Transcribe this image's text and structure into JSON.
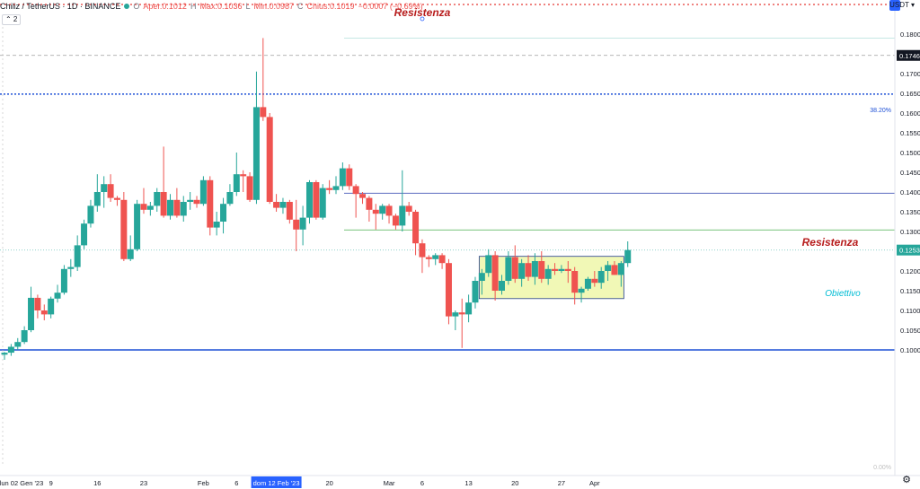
{
  "header": {
    "symbol": "Chiliz / TetherUS · 1D · BINANCE",
    "open_label": "O",
    "open": "Aper.0.1012",
    "high_label": "H",
    "high": "Max.0.1036",
    "low_label": "L",
    "low": "Min.0.0987",
    "close_label": "C",
    "close": "Chius.0.1019",
    "change": "−0.0007 (−0.69%)",
    "collapse": "⌃ 2",
    "currency": "USDT ▾"
  },
  "annotations": {
    "top_resistance": "Resistenza",
    "mid_resistance": "Resistenza",
    "target": "Obiettivo",
    "fib_382": "38.20%",
    "fib_0": "0.00%"
  },
  "price_labels": {
    "last": "0.1253",
    "marker": "0.1746"
  },
  "colors": {
    "up": "#26a69a",
    "down": "#ef5350",
    "resistance_text": "#b71c1c",
    "target_text": "#00bcd4",
    "fib_line": "#1e50d6",
    "box_fill": "#f1f8b6",
    "box_border": "#1e3a8a",
    "resistance_line": "#5c6bc0",
    "target_line": "#4caf50",
    "dotted_top": "#e53935"
  },
  "chart_data": {
    "type": "candlestick",
    "symbol": "Chiliz / TetherUS",
    "interval": "1D",
    "exchange": "BINANCE",
    "y_axis": {
      "range": [
        0.0985,
        0.1845
      ],
      "ticks": [
        "0.1800",
        "0.1750",
        "0.1700",
        "0.1650",
        "0.1600",
        "0.1550",
        "0.1500",
        "0.1450",
        "0.1400",
        "0.1350",
        "0.1300",
        "0.1250",
        "0.1200",
        "0.1150",
        "0.1100",
        "0.1050",
        "0.1000"
      ]
    },
    "x_axis": {
      "labels": [
        {
          "text": "lun 02 Gen '23",
          "index": 0
        },
        {
          "text": "9",
          "index": 7
        },
        {
          "text": "16",
          "index": 14
        },
        {
          "text": "23",
          "index": 21
        },
        {
          "text": "Feb",
          "index": 30
        },
        {
          "text": "6",
          "index": 35
        },
        {
          "text": "dom 12 Feb '23",
          "index": 41
        },
        {
          "text": "20",
          "index": 49
        },
        {
          "text": "Mar",
          "index": 58
        },
        {
          "text": "6",
          "index": 63
        },
        {
          "text": "13",
          "index": 70
        },
        {
          "text": "20",
          "index": 77
        },
        {
          "text": "27",
          "index": 84
        },
        {
          "text": "Apr",
          "index": 89
        }
      ],
      "highlight_label": "dom 12 Feb '23"
    },
    "candles": [
      {
        "o": 0.0988,
        "h": 0.0995,
        "l": 0.0975,
        "c": 0.0993
      },
      {
        "o": 0.0993,
        "h": 0.1015,
        "l": 0.0985,
        "c": 0.1008
      },
      {
        "o": 0.1008,
        "h": 0.103,
        "l": 0.1,
        "c": 0.102
      },
      {
        "o": 0.102,
        "h": 0.106,
        "l": 0.1015,
        "c": 0.105
      },
      {
        "o": 0.105,
        "h": 0.116,
        "l": 0.1045,
        "c": 0.1132
      },
      {
        "o": 0.1132,
        "h": 0.114,
        "l": 0.108,
        "c": 0.11
      },
      {
        "o": 0.11,
        "h": 0.1115,
        "l": 0.1075,
        "c": 0.109
      },
      {
        "o": 0.109,
        "h": 0.1135,
        "l": 0.108,
        "c": 0.113
      },
      {
        "o": 0.113,
        "h": 0.1165,
        "l": 0.112,
        "c": 0.1145
      },
      {
        "o": 0.1145,
        "h": 0.1215,
        "l": 0.114,
        "c": 0.1205
      },
      {
        "o": 0.1205,
        "h": 0.123,
        "l": 0.1185,
        "c": 0.121
      },
      {
        "o": 0.121,
        "h": 0.129,
        "l": 0.12,
        "c": 0.1265
      },
      {
        "o": 0.1265,
        "h": 0.133,
        "l": 0.1255,
        "c": 0.132
      },
      {
        "o": 0.132,
        "h": 0.138,
        "l": 0.131,
        "c": 0.1365
      },
      {
        "o": 0.1365,
        "h": 0.1445,
        "l": 0.135,
        "c": 0.14
      },
      {
        "o": 0.14,
        "h": 0.144,
        "l": 0.136,
        "c": 0.142
      },
      {
        "o": 0.142,
        "h": 0.1445,
        "l": 0.1375,
        "c": 0.1385
      },
      {
        "o": 0.1385,
        "h": 0.139,
        "l": 0.1365,
        "c": 0.138
      },
      {
        "o": 0.138,
        "h": 0.14,
        "l": 0.1225,
        "c": 0.123
      },
      {
        "o": 0.123,
        "h": 0.129,
        "l": 0.1225,
        "c": 0.1255
      },
      {
        "o": 0.1255,
        "h": 0.138,
        "l": 0.125,
        "c": 0.137
      },
      {
        "o": 0.137,
        "h": 0.141,
        "l": 0.1345,
        "c": 0.1355
      },
      {
        "o": 0.1355,
        "h": 0.1375,
        "l": 0.134,
        "c": 0.1365
      },
      {
        "o": 0.1365,
        "h": 0.141,
        "l": 0.135,
        "c": 0.14
      },
      {
        "o": 0.14,
        "h": 0.1515,
        "l": 0.1335,
        "c": 0.134
      },
      {
        "o": 0.134,
        "h": 0.1395,
        "l": 0.133,
        "c": 0.138
      },
      {
        "o": 0.138,
        "h": 0.141,
        "l": 0.1335,
        "c": 0.134
      },
      {
        "o": 0.134,
        "h": 0.139,
        "l": 0.1325,
        "c": 0.1375
      },
      {
        "o": 0.1375,
        "h": 0.14,
        "l": 0.1355,
        "c": 0.138
      },
      {
        "o": 0.138,
        "h": 0.139,
        "l": 0.136,
        "c": 0.137
      },
      {
        "o": 0.137,
        "h": 0.144,
        "l": 0.1365,
        "c": 0.143
      },
      {
        "o": 0.143,
        "h": 0.144,
        "l": 0.129,
        "c": 0.131
      },
      {
        "o": 0.131,
        "h": 0.135,
        "l": 0.129,
        "c": 0.1325
      },
      {
        "o": 0.1325,
        "h": 0.1385,
        "l": 0.1295,
        "c": 0.137
      },
      {
        "o": 0.137,
        "h": 0.142,
        "l": 0.1365,
        "c": 0.14
      },
      {
        "o": 0.14,
        "h": 0.15,
        "l": 0.139,
        "c": 0.1445
      },
      {
        "o": 0.1445,
        "h": 0.1455,
        "l": 0.14,
        "c": 0.144
      },
      {
        "o": 0.144,
        "h": 0.145,
        "l": 0.1375,
        "c": 0.138
      },
      {
        "o": 0.138,
        "h": 0.1705,
        "l": 0.137,
        "c": 0.1615
      },
      {
        "o": 0.1615,
        "h": 0.179,
        "l": 0.158,
        "c": 0.159
      },
      {
        "o": 0.159,
        "h": 0.16,
        "l": 0.137,
        "c": 0.1375
      },
      {
        "o": 0.1375,
        "h": 0.1395,
        "l": 0.135,
        "c": 0.136
      },
      {
        "o": 0.136,
        "h": 0.1385,
        "l": 0.1345,
        "c": 0.1375
      },
      {
        "o": 0.1375,
        "h": 0.138,
        "l": 0.132,
        "c": 0.133
      },
      {
        "o": 0.133,
        "h": 0.138,
        "l": 0.125,
        "c": 0.1305
      },
      {
        "o": 0.1305,
        "h": 0.1365,
        "l": 0.1265,
        "c": 0.1335
      },
      {
        "o": 0.1335,
        "h": 0.143,
        "l": 0.132,
        "c": 0.1425
      },
      {
        "o": 0.1425,
        "h": 0.143,
        "l": 0.133,
        "c": 0.1335
      },
      {
        "o": 0.1335,
        "h": 0.142,
        "l": 0.133,
        "c": 0.141
      },
      {
        "o": 0.141,
        "h": 0.143,
        "l": 0.1395,
        "c": 0.1405
      },
      {
        "o": 0.1405,
        "h": 0.144,
        "l": 0.1395,
        "c": 0.1415
      },
      {
        "o": 0.1415,
        "h": 0.1475,
        "l": 0.1405,
        "c": 0.146
      },
      {
        "o": 0.146,
        "h": 0.147,
        "l": 0.1405,
        "c": 0.1415
      },
      {
        "o": 0.1415,
        "h": 0.142,
        "l": 0.1335,
        "c": 0.1395
      },
      {
        "o": 0.1395,
        "h": 0.14,
        "l": 0.137,
        "c": 0.1385
      },
      {
        "o": 0.1385,
        "h": 0.139,
        "l": 0.1325,
        "c": 0.1355
      },
      {
        "o": 0.1355,
        "h": 0.137,
        "l": 0.1305,
        "c": 0.1345
      },
      {
        "o": 0.1345,
        "h": 0.137,
        "l": 0.133,
        "c": 0.1365
      },
      {
        "o": 0.1365,
        "h": 0.137,
        "l": 0.132,
        "c": 0.134
      },
      {
        "o": 0.134,
        "h": 0.1345,
        "l": 0.1305,
        "c": 0.1315
      },
      {
        "o": 0.1315,
        "h": 0.1455,
        "l": 0.13,
        "c": 0.1365
      },
      {
        "o": 0.1365,
        "h": 0.1375,
        "l": 0.134,
        "c": 0.135
      },
      {
        "o": 0.135,
        "h": 0.1355,
        "l": 0.124,
        "c": 0.127
      },
      {
        "o": 0.127,
        "h": 0.128,
        "l": 0.1195,
        "c": 0.1235
      },
      {
        "o": 0.1235,
        "h": 0.124,
        "l": 0.121,
        "c": 0.123
      },
      {
        "o": 0.123,
        "h": 0.1245,
        "l": 0.1215,
        "c": 0.124
      },
      {
        "o": 0.124,
        "h": 0.1245,
        "l": 0.1205,
        "c": 0.122
      },
      {
        "o": 0.122,
        "h": 0.123,
        "l": 0.1065,
        "c": 0.1085
      },
      {
        "o": 0.1085,
        "h": 0.11,
        "l": 0.105,
        "c": 0.1095
      },
      {
        "o": 0.1095,
        "h": 0.113,
        "l": 0.1005,
        "c": 0.109
      },
      {
        "o": 0.109,
        "h": 0.114,
        "l": 0.107,
        "c": 0.112
      },
      {
        "o": 0.112,
        "h": 0.1185,
        "l": 0.1105,
        "c": 0.1175
      },
      {
        "o": 0.1175,
        "h": 0.1205,
        "l": 0.114,
        "c": 0.1195
      },
      {
        "o": 0.1195,
        "h": 0.1255,
        "l": 0.1185,
        "c": 0.124
      },
      {
        "o": 0.124,
        "h": 0.125,
        "l": 0.1125,
        "c": 0.115
      },
      {
        "o": 0.115,
        "h": 0.119,
        "l": 0.114,
        "c": 0.1175
      },
      {
        "o": 0.1175,
        "h": 0.125,
        "l": 0.1165,
        "c": 0.1235
      },
      {
        "o": 0.1235,
        "h": 0.1265,
        "l": 0.117,
        "c": 0.118
      },
      {
        "o": 0.118,
        "h": 0.123,
        "l": 0.116,
        "c": 0.122
      },
      {
        "o": 0.122,
        "h": 0.124,
        "l": 0.1175,
        "c": 0.1185
      },
      {
        "o": 0.1185,
        "h": 0.1245,
        "l": 0.1165,
        "c": 0.1225
      },
      {
        "o": 0.1225,
        "h": 0.125,
        "l": 0.117,
        "c": 0.118
      },
      {
        "o": 0.118,
        "h": 0.1215,
        "l": 0.1165,
        "c": 0.1205
      },
      {
        "o": 0.1205,
        "h": 0.122,
        "l": 0.119,
        "c": 0.12
      },
      {
        "o": 0.12,
        "h": 0.1215,
        "l": 0.1195,
        "c": 0.1205
      },
      {
        "o": 0.1205,
        "h": 0.1225,
        "l": 0.117,
        "c": 0.12
      },
      {
        "o": 0.12,
        "h": 0.121,
        "l": 0.1115,
        "c": 0.1145
      },
      {
        "o": 0.1145,
        "h": 0.116,
        "l": 0.112,
        "c": 0.1155
      },
      {
        "o": 0.1155,
        "h": 0.1185,
        "l": 0.115,
        "c": 0.118
      },
      {
        "o": 0.118,
        "h": 0.12,
        "l": 0.116,
        "c": 0.117
      },
      {
        "o": 0.117,
        "h": 0.121,
        "l": 0.1155,
        "c": 0.12
      },
      {
        "o": 0.12,
        "h": 0.1225,
        "l": 0.1175,
        "c": 0.1215
      },
      {
        "o": 0.1215,
        "h": 0.1225,
        "l": 0.119,
        "c": 0.119
      },
      {
        "o": 0.119,
        "h": 0.1225,
        "l": 0.116,
        "c": 0.122
      },
      {
        "o": 0.122,
        "h": 0.1275,
        "l": 0.121,
        "c": 0.1253
      }
    ],
    "levels": [
      {
        "name": "resistance-top",
        "price": 0.1848,
        "style": "dotted"
      },
      {
        "name": "fib-38.20",
        "price": 0.1648,
        "style": "dotted"
      },
      {
        "name": "resistance-mid",
        "price": 0.1397,
        "style": "solid"
      },
      {
        "name": "target",
        "price": 0.1304,
        "style": "solid"
      },
      {
        "name": "fib-0.00",
        "price": 0.1,
        "style": "solid"
      },
      {
        "name": "marker",
        "price": 0.1746,
        "style": "dashed"
      },
      {
        "name": "last-close",
        "price": 0.1253,
        "style": "dotted"
      }
    ],
    "range_box": {
      "start_index": 72,
      "end_index": 93,
      "top": 0.1237,
      "bottom": 0.113
    },
    "grid": false,
    "legend": "top-left"
  }
}
